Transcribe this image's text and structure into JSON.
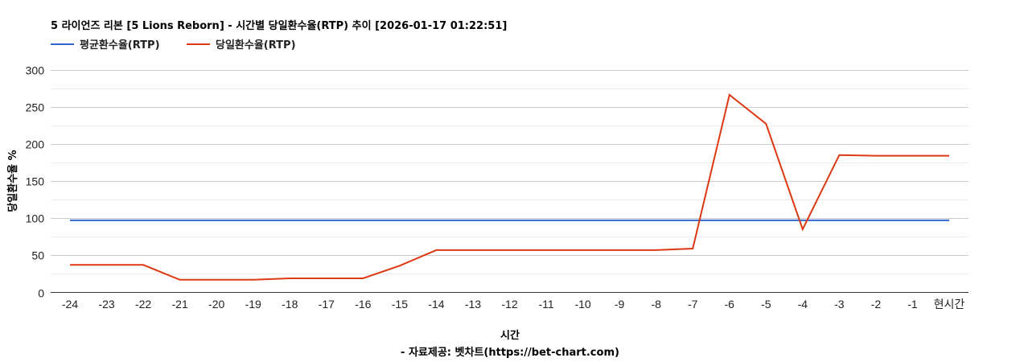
{
  "title": "5 라이언즈 리본 [5 Lions Reborn] - 시간별 당일환수율(RTP) 추이 [2026-01-17 01:22:51]",
  "legend": [
    {
      "label": "평균환수율(RTP)",
      "color": "#3366cc"
    },
    {
      "label": "당일환수율(RTP)",
      "color": "#dc3912"
    }
  ],
  "axes": {
    "x_title": "시간",
    "y_title": "당일환수율 %",
    "source": "- 자료제공: 벳차트(https://bet-chart.com)"
  },
  "chart_data": {
    "type": "line",
    "title": "5 라이언즈 리본 [5 Lions Reborn] - 시간별 당일환수율(RTP) 추이 [2026-01-17 01:22:51]",
    "xlabel": "시간",
    "ylabel": "당일환수율 %",
    "categories": [
      "-24",
      "-23",
      "-22",
      "-21",
      "-20",
      "-19",
      "-18",
      "-17",
      "-16",
      "-15",
      "-14",
      "-13",
      "-12",
      "-11",
      "-10",
      "-9",
      "-8",
      "-7",
      "-6",
      "-5",
      "-4",
      "-3",
      "-2",
      "-1",
      "현시간"
    ],
    "series": [
      {
        "name": "평균환수율(RTP)",
        "color": "#3366cc",
        "values": [
          97,
          97,
          97,
          97,
          97,
          97,
          97,
          97,
          97,
          97,
          97,
          97,
          97,
          97,
          97,
          97,
          97,
          97,
          97,
          97,
          97,
          97,
          97,
          97,
          97
        ]
      },
      {
        "name": "당일환수율(RTP)",
        "color": "#dc3912",
        "values": [
          37,
          37,
          37,
          17,
          17,
          17,
          19,
          19,
          19,
          36,
          57,
          57,
          57,
          57,
          57,
          57,
          57,
          59,
          266,
          227,
          85,
          185,
          184,
          184,
          184
        ]
      }
    ],
    "ylim": [
      0,
      300
    ],
    "yticks": [
      0,
      50,
      100,
      150,
      200,
      250,
      300
    ],
    "grid": true,
    "legend_position": "top"
  }
}
